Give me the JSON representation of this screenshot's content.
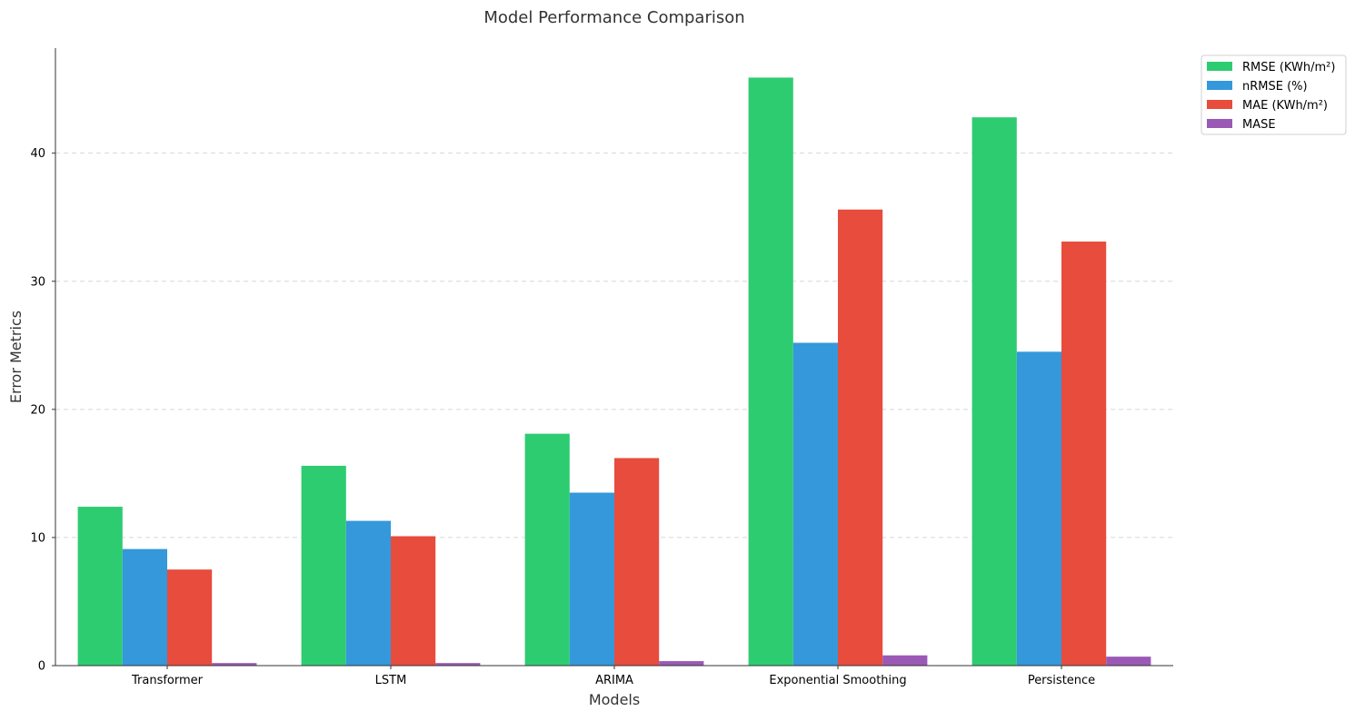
{
  "chart_data": {
    "type": "bar",
    "title": "Model Performance Comparison",
    "xlabel": "Models",
    "ylabel": "Error Metrics",
    "categories": [
      "Transformer",
      "LSTM",
      "ARIMA",
      "Exponential Smoothing",
      "Persistence"
    ],
    "series": [
      {
        "name": "RMSE (KWh/m²)",
        "color": "#2ecc71",
        "values": [
          12.4,
          15.6,
          18.1,
          45.9,
          42.8
        ]
      },
      {
        "name": "nRMSE (%)",
        "color": "#3498db",
        "values": [
          9.1,
          11.3,
          13.5,
          25.2,
          24.5
        ]
      },
      {
        "name": "MAE (KWh/m²)",
        "color": "#e74c3c",
        "values": [
          7.5,
          10.1,
          16.2,
          35.6,
          33.1
        ]
      },
      {
        "name": "MASE",
        "color": "#9b59b6",
        "values": [
          0.2,
          0.2,
          0.35,
          0.8,
          0.7
        ]
      }
    ],
    "ylim": [
      0,
      48.2
    ],
    "yticks": [
      0,
      10,
      20,
      30,
      40
    ],
    "grid": "y-dashed",
    "legend_position": "outside-top-right"
  }
}
